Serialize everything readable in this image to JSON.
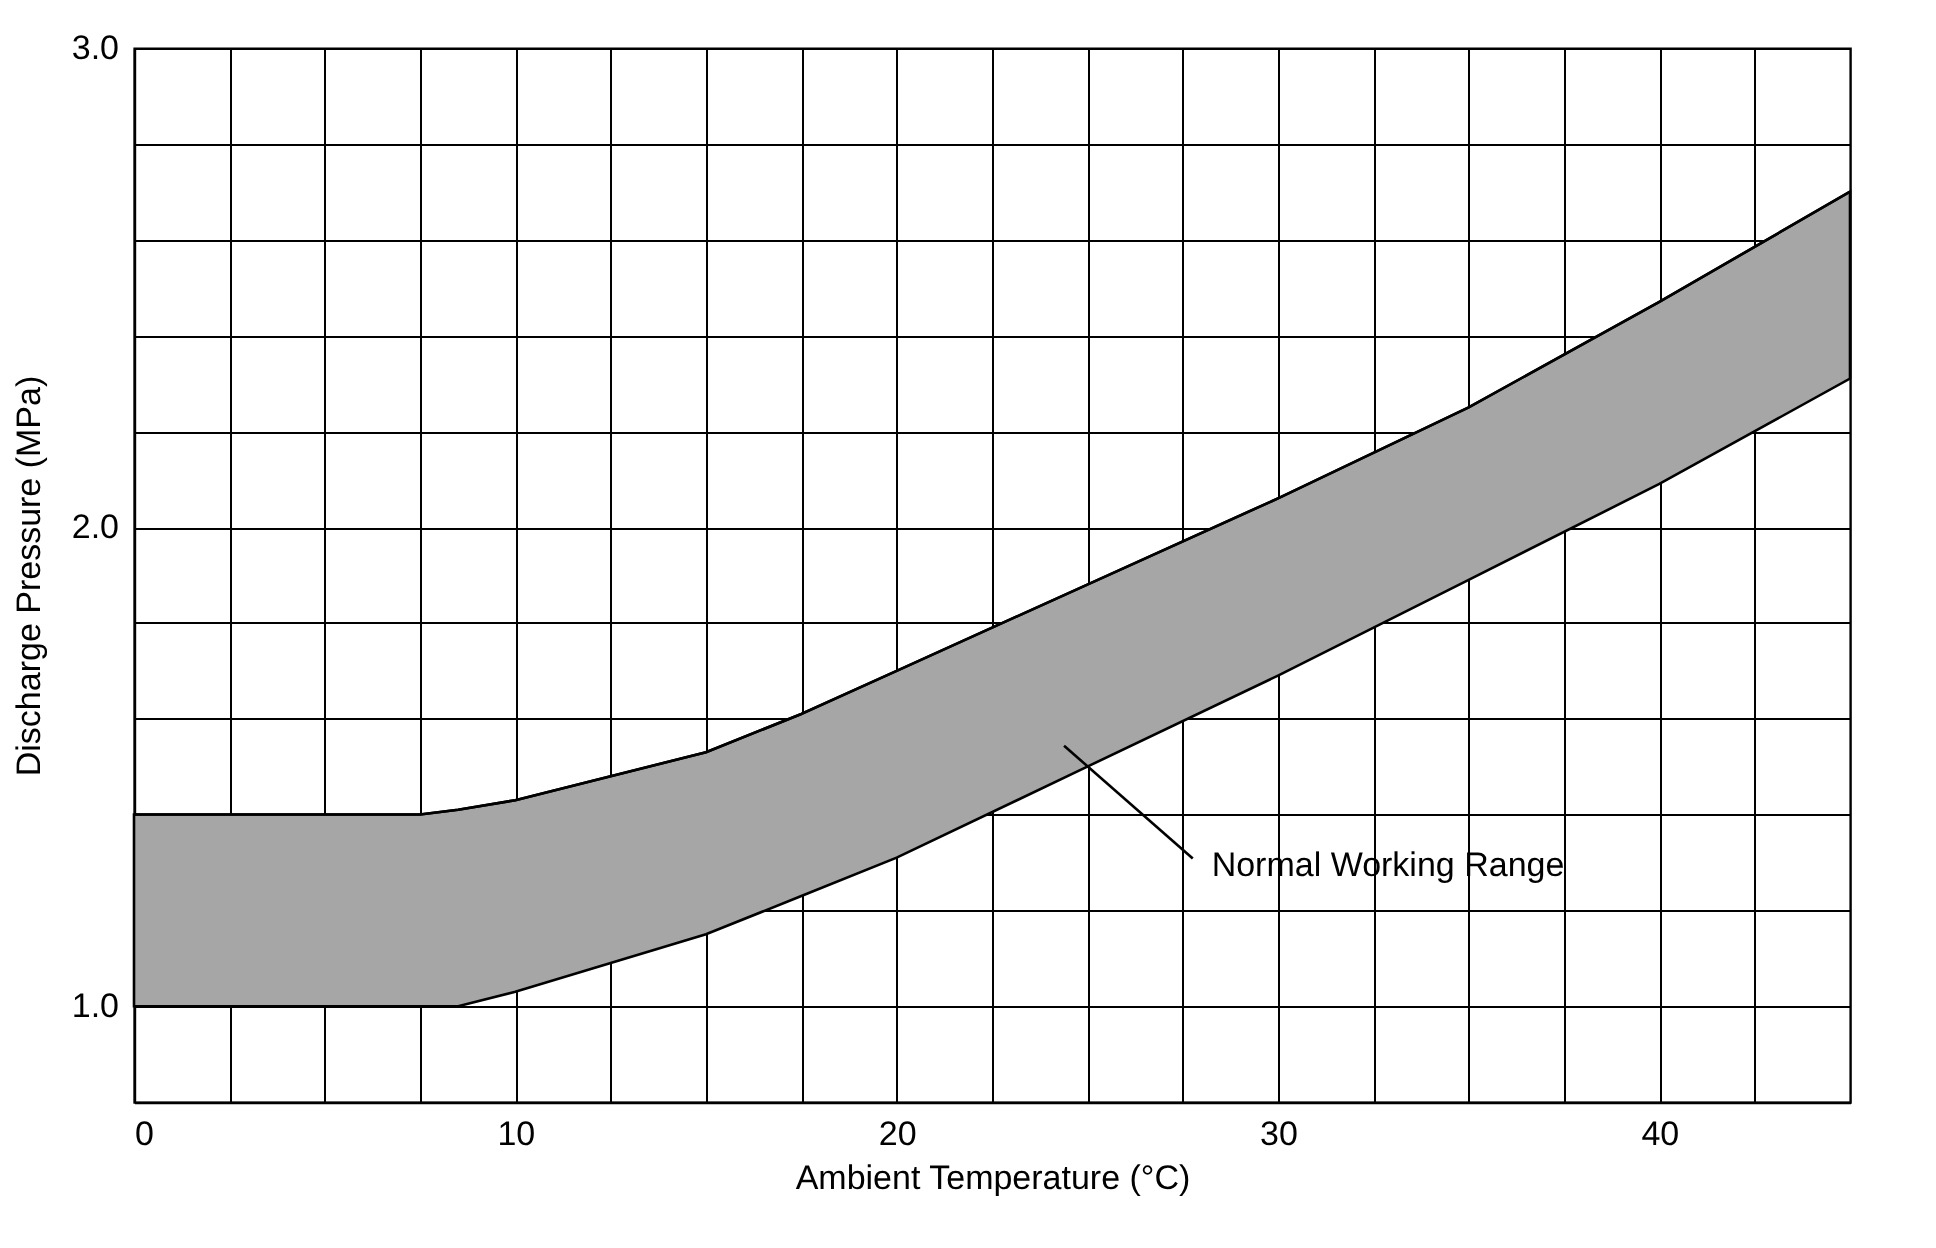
{
  "chart_data": {
    "type": "line",
    "xlabel": "Ambient Temperature (°C)",
    "ylabel": "Discharge Pressure (MPa)",
    "xlim": [
      0,
      45
    ],
    "ylim": [
      0.8,
      3.0
    ],
    "xticks": [
      0,
      {
        "value": 2.5,
        "label": null
      },
      {
        "value": 5,
        "label": null
      },
      {
        "value": 7.5,
        "label": null
      },
      10,
      {
        "value": 12.5,
        "label": null
      },
      {
        "value": 15,
        "label": null
      },
      {
        "value": 17.5,
        "label": null
      },
      20,
      {
        "value": 22.5,
        "label": null
      },
      {
        "value": 25,
        "label": null
      },
      {
        "value": 27.5,
        "label": null
      },
      30,
      {
        "value": 32.5,
        "label": null
      },
      {
        "value": 35,
        "label": null
      },
      {
        "value": 37.5,
        "label": null
      },
      40,
      {
        "value": 42.5,
        "label": null
      }
    ],
    "yticks": [
      {
        "value": 1,
        "label": "1.0"
      },
      {
        "value": 1.2,
        "label": null
      },
      {
        "value": 1.4,
        "label": null
      },
      {
        "value": 1.6,
        "label": null
      },
      {
        "value": 1.8,
        "label": null
      },
      {
        "value": 2,
        "label": "2.0"
      },
      {
        "value": 2.2,
        "label": null
      },
      {
        "value": 2.4,
        "label": null
      },
      {
        "value": 2.6,
        "label": null
      },
      {
        "value": 2.8,
        "label": null
      },
      {
        "value": 3,
        "label": "3.0"
      }
    ],
    "grid": true,
    "x": [
      0,
      5,
      7.5,
      8.5,
      10,
      12.5,
      15,
      17.5,
      20,
      25,
      30,
      35,
      40,
      45
    ],
    "series": [
      {
        "color": "#000000",
        "values": [
          1.4,
          1.4,
          1.4,
          1.41,
          1.43,
          1.48,
          1.53,
          1.61,
          1.7,
          1.88,
          2.06,
          2.25,
          2.47,
          2.7
        ],
        "lower": [
          1.0,
          1.0,
          1.0,
          1.0,
          1.03,
          1.09,
          1.15,
          1.23,
          1.31,
          1.5,
          1.69,
          1.89,
          2.09,
          2.31
        ],
        "upper": [
          1.4,
          1.4,
          1.4,
          1.41,
          1.43,
          1.48,
          1.53,
          1.61,
          1.7,
          1.88,
          2.06,
          2.25,
          2.47,
          2.7
        ]
      }
    ],
    "annotations": [
      "Normal Working Range"
    ]
  }
}
